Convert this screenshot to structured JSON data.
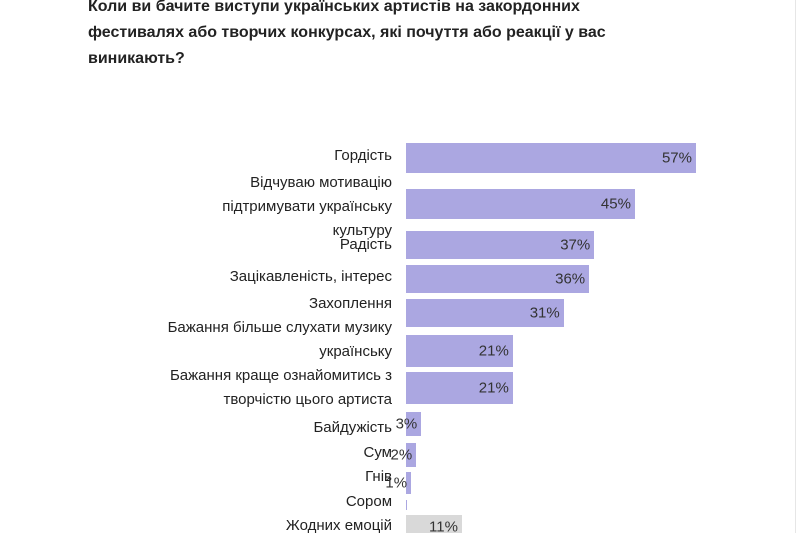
{
  "chart_data": {
    "type": "hbar",
    "title": "Коли ви бачите виступи українських артистів на закордонних\nфестивалях або творчих конкурсах, які почуття або реакції у вас\nвиникають?",
    "categories": [
      "Гордість",
      "Відчуваю мотивацію\nпідтримувати українську\nкультуру",
      "Радість",
      "Зацікавленість, інтерес",
      "Захоплення",
      "Бажання більше слухати музику\nукраїнську",
      "Бажання краще ознайомитись з\nтворчістю цього артиста",
      "Байдужість",
      "Сум",
      "Гнів",
      "Сором",
      "Жодних емоцій"
    ],
    "values": [
      57,
      45,
      37,
      36,
      31,
      21,
      21,
      3,
      2,
      1,
      0.2,
      11
    ],
    "value_labels": [
      "57%",
      "45%",
      "37%",
      "36%",
      "31%",
      "21%",
      "21%",
      "3%",
      "2%",
      "1%",
      null,
      "11%"
    ],
    "colors": [
      "#aba7e1",
      "#aba7e1",
      "#aba7e1",
      "#aba7e1",
      "#aba7e1",
      "#aba7e1",
      "#aba7e1",
      "#aba7e1",
      "#aba7e1",
      "#aba7e1",
      "#aba7e1",
      "#d9d9d9"
    ]
  }
}
